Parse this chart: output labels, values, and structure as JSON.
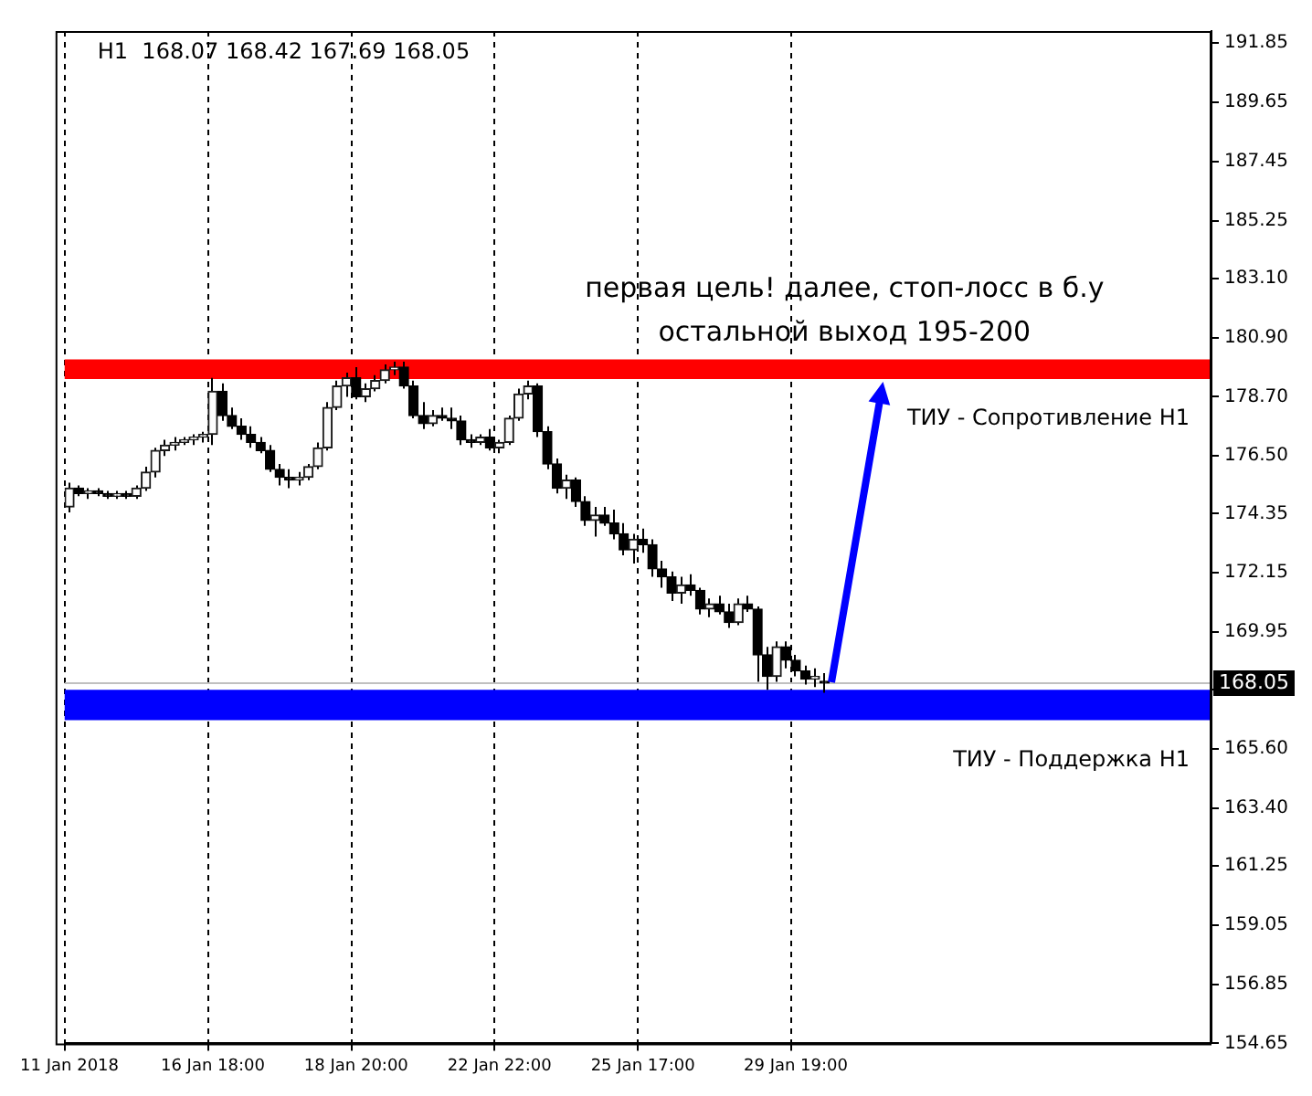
{
  "chart_data": {
    "type": "candlestick",
    "title": "H1  168.07 168.42 167.69 168.05",
    "categories": [
      "11 Jan 2018",
      null,
      null,
      null,
      null,
      null,
      null,
      null,
      null,
      null,
      null,
      null,
      null,
      null,
      null,
      "16 Jan 18:00",
      null,
      null,
      null,
      null,
      null,
      null,
      null,
      null,
      null,
      null,
      null,
      null,
      null,
      null,
      "18 Jan 20:00",
      null,
      null,
      null,
      null,
      null,
      null,
      null,
      null,
      null,
      null,
      null,
      null,
      null,
      null,
      "22 Jan 22:00",
      null,
      null,
      null,
      null,
      null,
      null,
      null,
      null,
      null,
      null,
      null,
      null,
      null,
      null,
      "25 Jan 17:00",
      null,
      null,
      null,
      null,
      null,
      null,
      null,
      null,
      null,
      null,
      null,
      null,
      null,
      null,
      null,
      "29 Jan 19:00",
      null,
      null,
      null,
      null,
      null,
      null,
      null,
      null,
      null,
      null,
      null,
      null,
      null,
      null,
      null,
      null,
      null,
      null,
      null,
      null,
      null,
      null,
      null,
      null,
      null,
      null,
      null,
      null,
      null,
      null,
      null,
      null,
      null,
      null,
      null,
      null,
      null,
      null,
      null,
      null,
      null,
      null,
      null
    ],
    "ohlc": [
      [
        174.6,
        175.5,
        174.4,
        175.3
      ],
      [
        175.3,
        175.4,
        175.0,
        175.1
      ],
      [
        175.1,
        175.3,
        174.9,
        175.2
      ],
      [
        175.2,
        175.3,
        175.0,
        175.1
      ],
      [
        175.1,
        175.2,
        174.9,
        175.0
      ],
      [
        175.0,
        175.2,
        174.9,
        175.1
      ],
      [
        175.1,
        175.2,
        174.9,
        175.0
      ],
      [
        175.0,
        175.4,
        174.9,
        175.3
      ],
      [
        175.3,
        176.1,
        175.2,
        175.9
      ],
      [
        175.9,
        176.8,
        175.7,
        176.7
      ],
      [
        176.7,
        177.1,
        176.5,
        176.9
      ],
      [
        176.9,
        177.2,
        176.7,
        177.0
      ],
      [
        177.0,
        177.2,
        176.9,
        177.1
      ],
      [
        177.1,
        177.3,
        176.9,
        177.2
      ],
      [
        177.2,
        177.4,
        177.0,
        177.3
      ],
      [
        177.3,
        179.4,
        176.9,
        178.9
      ],
      [
        178.9,
        179.2,
        177.8,
        178.0
      ],
      [
        178.0,
        178.3,
        177.5,
        177.6
      ],
      [
        177.6,
        177.9,
        177.1,
        177.3
      ],
      [
        177.3,
        177.6,
        176.8,
        177.0
      ],
      [
        177.0,
        177.2,
        176.6,
        176.7
      ],
      [
        176.7,
        176.9,
        175.9,
        176.0
      ],
      [
        176.0,
        176.2,
        175.4,
        175.7
      ],
      [
        175.7,
        176.0,
        175.3,
        175.6
      ],
      [
        175.6,
        175.9,
        175.4,
        175.7
      ],
      [
        175.7,
        176.2,
        175.6,
        176.1
      ],
      [
        176.1,
        177.0,
        176.0,
        176.8
      ],
      [
        176.8,
        178.5,
        176.7,
        178.3
      ],
      [
        178.3,
        179.3,
        178.2,
        179.1
      ],
      [
        179.1,
        179.6,
        178.7,
        179.4
      ],
      [
        179.4,
        179.8,
        178.6,
        178.7
      ],
      [
        178.7,
        179.2,
        178.5,
        179.0
      ],
      [
        179.0,
        179.5,
        178.9,
        179.3
      ],
      [
        179.3,
        179.9,
        179.2,
        179.7
      ],
      [
        179.7,
        180.0,
        179.5,
        179.8
      ],
      [
        179.8,
        180.0,
        179.0,
        179.1
      ],
      [
        179.1,
        179.3,
        177.9,
        178.0
      ],
      [
        178.0,
        178.5,
        177.5,
        177.7
      ],
      [
        177.7,
        178.2,
        177.6,
        178.0
      ],
      [
        178.0,
        178.3,
        177.8,
        177.9
      ],
      [
        177.9,
        178.3,
        177.5,
        177.8
      ],
      [
        177.8,
        178.0,
        176.9,
        177.1
      ],
      [
        177.1,
        177.3,
        176.8,
        177.0
      ],
      [
        177.0,
        177.3,
        176.9,
        177.2
      ],
      [
        177.2,
        177.5,
        176.7,
        176.8
      ],
      [
        176.8,
        177.1,
        176.6,
        177.0
      ],
      [
        177.0,
        178.0,
        176.9,
        177.9
      ],
      [
        177.9,
        179.0,
        177.8,
        178.8
      ],
      [
        178.8,
        179.3,
        178.6,
        179.1
      ],
      [
        179.1,
        179.2,
        177.2,
        177.4
      ],
      [
        177.4,
        177.6,
        176.0,
        176.2
      ],
      [
        176.2,
        176.4,
        175.1,
        175.3
      ],
      [
        175.3,
        175.8,
        174.9,
        175.6
      ],
      [
        175.6,
        175.7,
        174.6,
        174.8
      ],
      [
        174.8,
        175.0,
        173.9,
        174.1
      ],
      [
        174.1,
        174.6,
        173.5,
        174.3
      ],
      [
        174.3,
        174.6,
        173.9,
        174.0
      ],
      [
        174.0,
        174.5,
        173.4,
        173.6
      ],
      [
        173.6,
        174.0,
        172.8,
        173.0
      ],
      [
        173.0,
        173.6,
        172.5,
        173.4
      ],
      [
        173.4,
        173.8,
        172.9,
        173.2
      ],
      [
        173.2,
        173.4,
        172.0,
        172.3
      ],
      [
        172.3,
        172.6,
        171.6,
        172.0
      ],
      [
        172.0,
        172.2,
        171.1,
        171.4
      ],
      [
        171.4,
        172.0,
        171.0,
        171.7
      ],
      [
        171.7,
        172.1,
        171.3,
        171.5
      ],
      [
        171.5,
        171.6,
        170.6,
        170.8
      ],
      [
        170.8,
        171.2,
        170.5,
        171.0
      ],
      [
        171.0,
        171.3,
        170.6,
        170.7
      ],
      [
        170.7,
        171.0,
        170.1,
        170.3
      ],
      [
        170.3,
        171.2,
        170.2,
        171.0
      ],
      [
        171.0,
        171.3,
        170.7,
        170.8
      ],
      [
        170.8,
        170.9,
        168.1,
        169.1
      ],
      [
        169.1,
        169.4,
        167.8,
        168.3
      ],
      [
        168.3,
        169.6,
        168.1,
        169.4
      ],
      [
        169.4,
        169.6,
        168.6,
        168.9
      ],
      [
        168.9,
        169.1,
        168.3,
        168.5
      ],
      [
        168.5,
        168.7,
        168.0,
        168.2
      ],
      [
        168.2,
        168.6,
        167.9,
        168.3
      ],
      [
        168.07,
        168.42,
        167.69,
        168.05
      ],
      null,
      null,
      null,
      null,
      null,
      null,
      null,
      null,
      null,
      null,
      null,
      null,
      null,
      null,
      null,
      null,
      null,
      null,
      null,
      null,
      null,
      null,
      null,
      null,
      null,
      null,
      null,
      null,
      null,
      null,
      null,
      null,
      null,
      null,
      null,
      null,
      null,
      null,
      null,
      null
    ],
    "ylim": [
      154.65,
      192.3
    ],
    "yticks": [
      {
        "value": 154.65,
        "label": "154.65"
      },
      {
        "value": 156.85,
        "label": "156.85"
      },
      {
        "value": 159.05,
        "label": "159.05"
      },
      {
        "value": 161.25,
        "label": "161.25"
      },
      {
        "value": 163.4,
        "label": "163.40"
      },
      {
        "value": 165.6,
        "label": "165.60"
      },
      {
        "value": 167.8,
        "label": null
      },
      {
        "value": 169.95,
        "label": "169.95"
      },
      {
        "value": 172.15,
        "label": "172.15"
      },
      {
        "value": 174.35,
        "label": "174.35"
      },
      {
        "value": 176.5,
        "label": "176.50"
      },
      {
        "value": 178.7,
        "label": "178.70"
      },
      {
        "value": 180.9,
        "label": "180.90"
      },
      {
        "value": 183.1,
        "label": "183.10"
      },
      {
        "value": 185.25,
        "label": "185.25"
      },
      {
        "value": 187.45,
        "label": "187.45"
      },
      {
        "value": 189.65,
        "label": "189.65"
      },
      {
        "value": 191.85,
        "label": "191.85"
      }
    ],
    "grid": "x",
    "bands": [
      {
        "axis": "y",
        "from": 179.36,
        "to": 180.09,
        "label": "ТИУ - Сопротивление H1",
        "color": "#ff0000"
      },
      {
        "axis": "y",
        "from": 166.67,
        "to": 167.8,
        "label": "ТИУ - Поддержка H1",
        "color": "#0000ff"
      }
    ],
    "ref_lines": [
      {
        "axis": "y",
        "value": 168.05,
        "label": "168.05",
        "color": "#c0c0c0"
      }
    ],
    "annotations": [
      {
        "text": "первая цель! далее, стоп-лосс в б.у\nостальной выход 195-200",
        "y": 180.09
      }
    ]
  }
}
